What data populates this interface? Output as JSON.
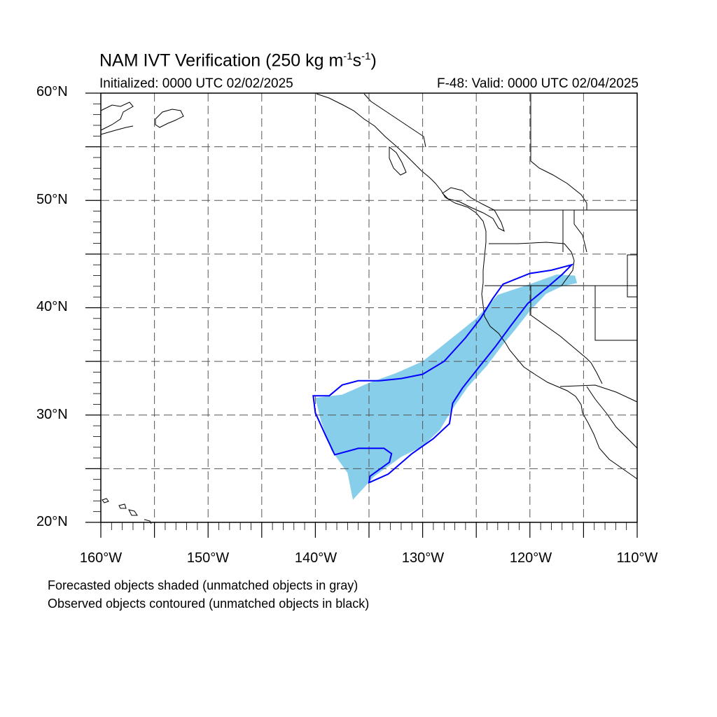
{
  "title": {
    "main": "NAM IVT Verification (250 kg m",
    "sup1": "-1",
    "mid": "s",
    "sup2": "-1",
    "close": ")"
  },
  "initialized": "Initialized: 0000 UTC 02/02/2025",
  "valid": "F-48: Valid: 0000 UTC 02/04/2025",
  "lat_labels": [
    "60°N",
    "50°N",
    "40°N",
    "30°N",
    "20°N"
  ],
  "lon_labels": [
    "160°W",
    "150°W",
    "140°W",
    "130°W",
    "120°W",
    "110°W"
  ],
  "legend_notes": [
    "Forecasted objects shaded (unmatched objects in gray)",
    "Observed objects contoured (unmatched objects in black)"
  ],
  "map": {
    "extent": {
      "lon_min": -160,
      "lon_max": -110,
      "lat_min": 20,
      "lat_max": 60
    },
    "graticule_interval_deg": 5,
    "forecast_fill_color": "#87ceeb",
    "observed_contour_color": "#0000ff",
    "forecast_object": [
      [
        -140.0,
        31.6
      ],
      [
        -137.5,
        31.9
      ],
      [
        -135.0,
        33.0
      ],
      [
        -132.5,
        33.9
      ],
      [
        -130.0,
        35.0
      ],
      [
        -127.5,
        37.0
      ],
      [
        -125.0,
        39.0
      ],
      [
        -123.0,
        41.2
      ],
      [
        -120.0,
        42.2
      ],
      [
        -117.5,
        43.1
      ],
      [
        -115.8,
        43.0
      ],
      [
        -115.6,
        42.3
      ],
      [
        -117.0,
        42.0
      ],
      [
        -118.5,
        41.3
      ],
      [
        -120.0,
        39.7
      ],
      [
        -121.5,
        37.8
      ],
      [
        -122.5,
        36.6
      ],
      [
        -124.0,
        34.6
      ],
      [
        -125.8,
        32.6
      ],
      [
        -127.2,
        30.6
      ],
      [
        -128.4,
        28.6
      ],
      [
        -130.0,
        27.1
      ],
      [
        -132.0,
        26.1
      ],
      [
        -134.5,
        24.3
      ],
      [
        -136.5,
        22.1
      ],
      [
        -137.0,
        24.6
      ],
      [
        -138.5,
        26.7
      ],
      [
        -139.5,
        29.5
      ]
    ],
    "observed_object": [
      [
        -140.2,
        31.8
      ],
      [
        -138.7,
        31.8
      ],
      [
        -137.5,
        32.8
      ],
      [
        -136.0,
        33.2
      ],
      [
        -134.0,
        33.2
      ],
      [
        -132.0,
        33.4
      ],
      [
        -130.0,
        33.8
      ],
      [
        -128.0,
        35.0
      ],
      [
        -126.0,
        37.2
      ],
      [
        -124.6,
        39.0
      ],
      [
        -123.5,
        40.8
      ],
      [
        -122.5,
        42.2
      ],
      [
        -120.0,
        43.2
      ],
      [
        -118.0,
        43.5
      ],
      [
        -116.1,
        44.0
      ],
      [
        -117.0,
        43.1
      ],
      [
        -118.5,
        41.8
      ],
      [
        -120.2,
        40.4
      ],
      [
        -121.8,
        38.3
      ],
      [
        -123.2,
        36.4
      ],
      [
        -124.8,
        34.4
      ],
      [
        -126.3,
        32.5
      ],
      [
        -127.2,
        31.1
      ],
      [
        -127.5,
        29.2
      ],
      [
        -129.0,
        27.8
      ],
      [
        -131.0,
        26.4
      ],
      [
        -133.2,
        24.5
      ],
      [
        -135.0,
        23.7
      ],
      [
        -134.9,
        24.3
      ],
      [
        -133.1,
        25.6
      ],
      [
        -132.9,
        26.4
      ],
      [
        -133.6,
        26.9
      ],
      [
        -136.0,
        26.9
      ],
      [
        -138.2,
        26.3
      ],
      [
        -139.0,
        28.0
      ],
      [
        -140.0,
        30.2
      ]
    ]
  }
}
